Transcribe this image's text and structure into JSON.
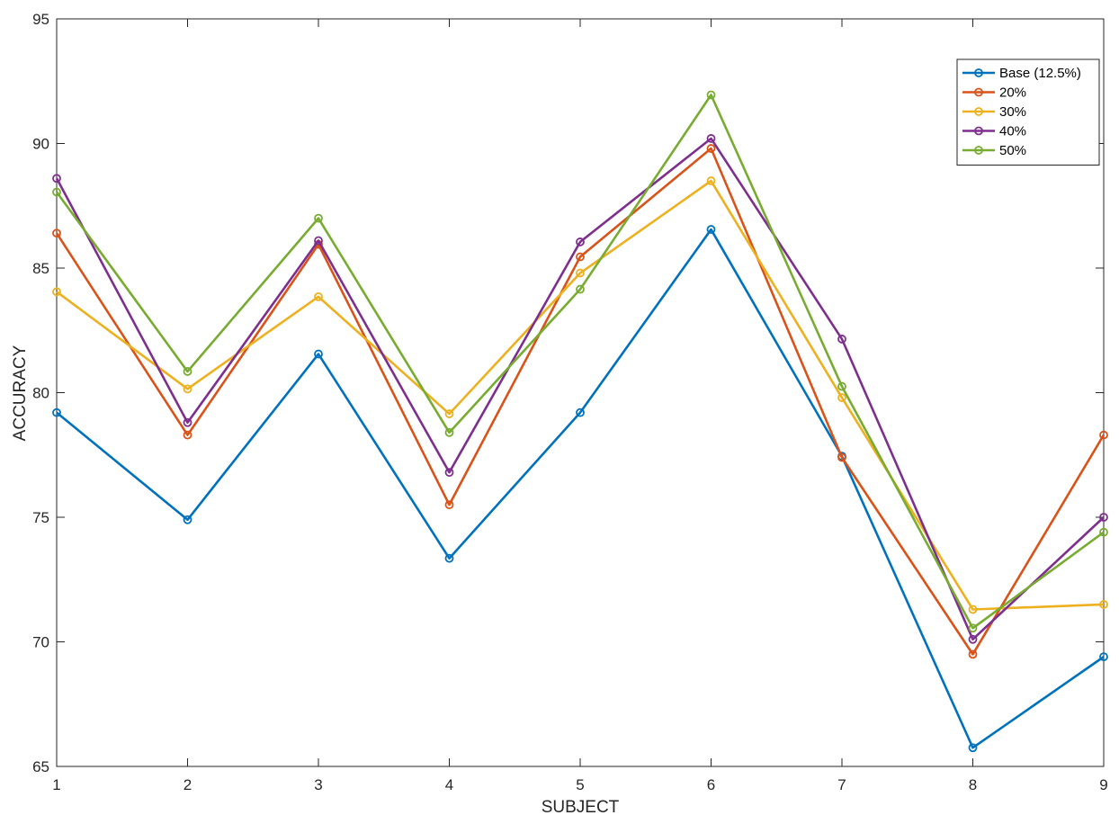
{
  "chart_data": {
    "type": "line",
    "xlabel": "SUBJECT",
    "ylabel": "ACCURACY",
    "xlim": [
      1,
      9
    ],
    "ylim": [
      65,
      95
    ],
    "x": [
      1,
      2,
      3,
      4,
      5,
      6,
      7,
      8,
      9
    ],
    "xticks": [
      "1",
      "2",
      "3",
      "4",
      "5",
      "6",
      "7",
      "8",
      "9"
    ],
    "yticks": [
      "65",
      "70",
      "75",
      "80",
      "85",
      "90",
      "95"
    ],
    "grid": false,
    "legend_position": "top-right",
    "series": [
      {
        "name": "Base (12.5%)",
        "color": "#0072BD",
        "values": [
          79.2,
          74.9,
          81.55,
          73.35,
          79.2,
          86.55,
          77.45,
          65.75,
          69.4
        ]
      },
      {
        "name": "20%",
        "color": "#D95319",
        "values": [
          86.4,
          78.3,
          85.95,
          75.5,
          85.45,
          89.8,
          77.4,
          69.5,
          78.3
        ]
      },
      {
        "name": "30%",
        "color": "#EDB120",
        "values": [
          84.05,
          80.15,
          83.85,
          79.15,
          84.8,
          88.5,
          79.8,
          71.3,
          71.5
        ]
      },
      {
        "name": "40%",
        "color": "#7E2F8E",
        "values": [
          88.6,
          78.8,
          86.1,
          76.8,
          86.05,
          90.2,
          82.15,
          70.1,
          75.0
        ]
      },
      {
        "name": "50%",
        "color": "#77AC30",
        "values": [
          88.05,
          80.85,
          87.0,
          78.4,
          84.15,
          91.95,
          80.25,
          70.55,
          74.4
        ]
      }
    ]
  }
}
